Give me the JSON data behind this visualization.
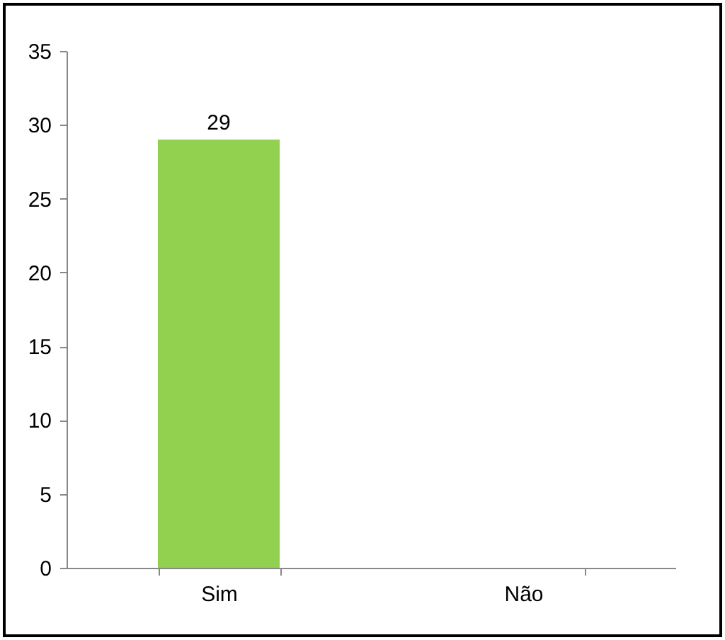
{
  "chart_data": {
    "type": "bar",
    "categories": [
      "Sim",
      "Não"
    ],
    "values": [
      29,
      0
    ],
    "value_labels": [
      "29",
      null
    ],
    "color": "#92d050",
    "ylim": [
      0,
      35
    ],
    "yticks": [
      0,
      5,
      10,
      15,
      20,
      25,
      30,
      35
    ],
    "grid": false
  }
}
